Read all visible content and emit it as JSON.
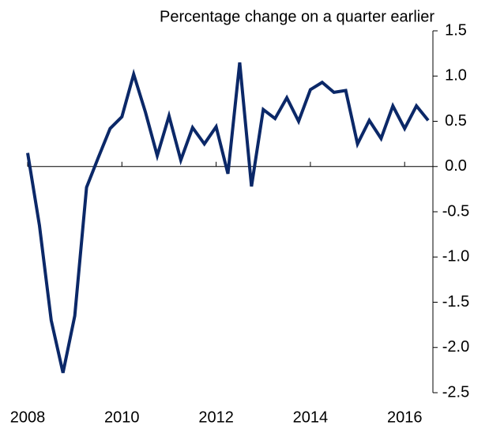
{
  "chart_data": {
    "type": "line",
    "title": "Percentage change on a quarter earlier",
    "x": [
      2008,
      2008.25,
      2008.5,
      2008.75,
      2009,
      2009.25,
      2009.5,
      2009.75,
      2010,
      2010.25,
      2010.5,
      2010.75,
      2011,
      2011.25,
      2011.5,
      2011.75,
      2012,
      2012.25,
      2012.5,
      2012.75,
      2013,
      2013.25,
      2013.5,
      2013.75,
      2014,
      2014.25,
      2014.5,
      2014.75,
      2015,
      2015.25,
      2015.5,
      2015.75,
      2016,
      2016.25,
      2016.5
    ],
    "series": [
      {
        "color": "#0b2868",
        "values": [
          0.15,
          -0.65,
          -1.7,
          -2.28,
          -1.65,
          -0.23,
          0.1,
          0.42,
          0.55,
          1.02,
          0.6,
          0.12,
          0.56,
          0.07,
          0.43,
          0.25,
          0.44,
          -0.08,
          1.15,
          -0.22,
          0.63,
          0.53,
          0.76,
          0.5,
          0.85,
          0.93,
          0.82,
          0.84,
          0.25,
          0.51,
          0.31,
          0.67,
          0.42,
          0.67,
          0.51
        ]
      }
    ],
    "xlim": [
      2008,
      2016.6
    ],
    "xticks": [
      2008,
      2010,
      2012,
      2014,
      2016
    ],
    "ylim": [
      -2.5,
      1.5
    ],
    "yticks": [
      {
        "value": 1.5,
        "label": "1.5"
      },
      {
        "value": 1,
        "label": "1.0"
      },
      {
        "value": 0.5,
        "label": "0.5"
      },
      {
        "value": 0,
        "label": "0.0"
      },
      {
        "value": -0.5,
        "label": "-0.5"
      },
      {
        "value": -1,
        "label": "-1.0"
      },
      {
        "value": -1.5,
        "label": "-1.5"
      },
      {
        "value": -2,
        "label": "-2.0"
      },
      {
        "value": -2.5,
        "label": "-2.5"
      }
    ]
  }
}
